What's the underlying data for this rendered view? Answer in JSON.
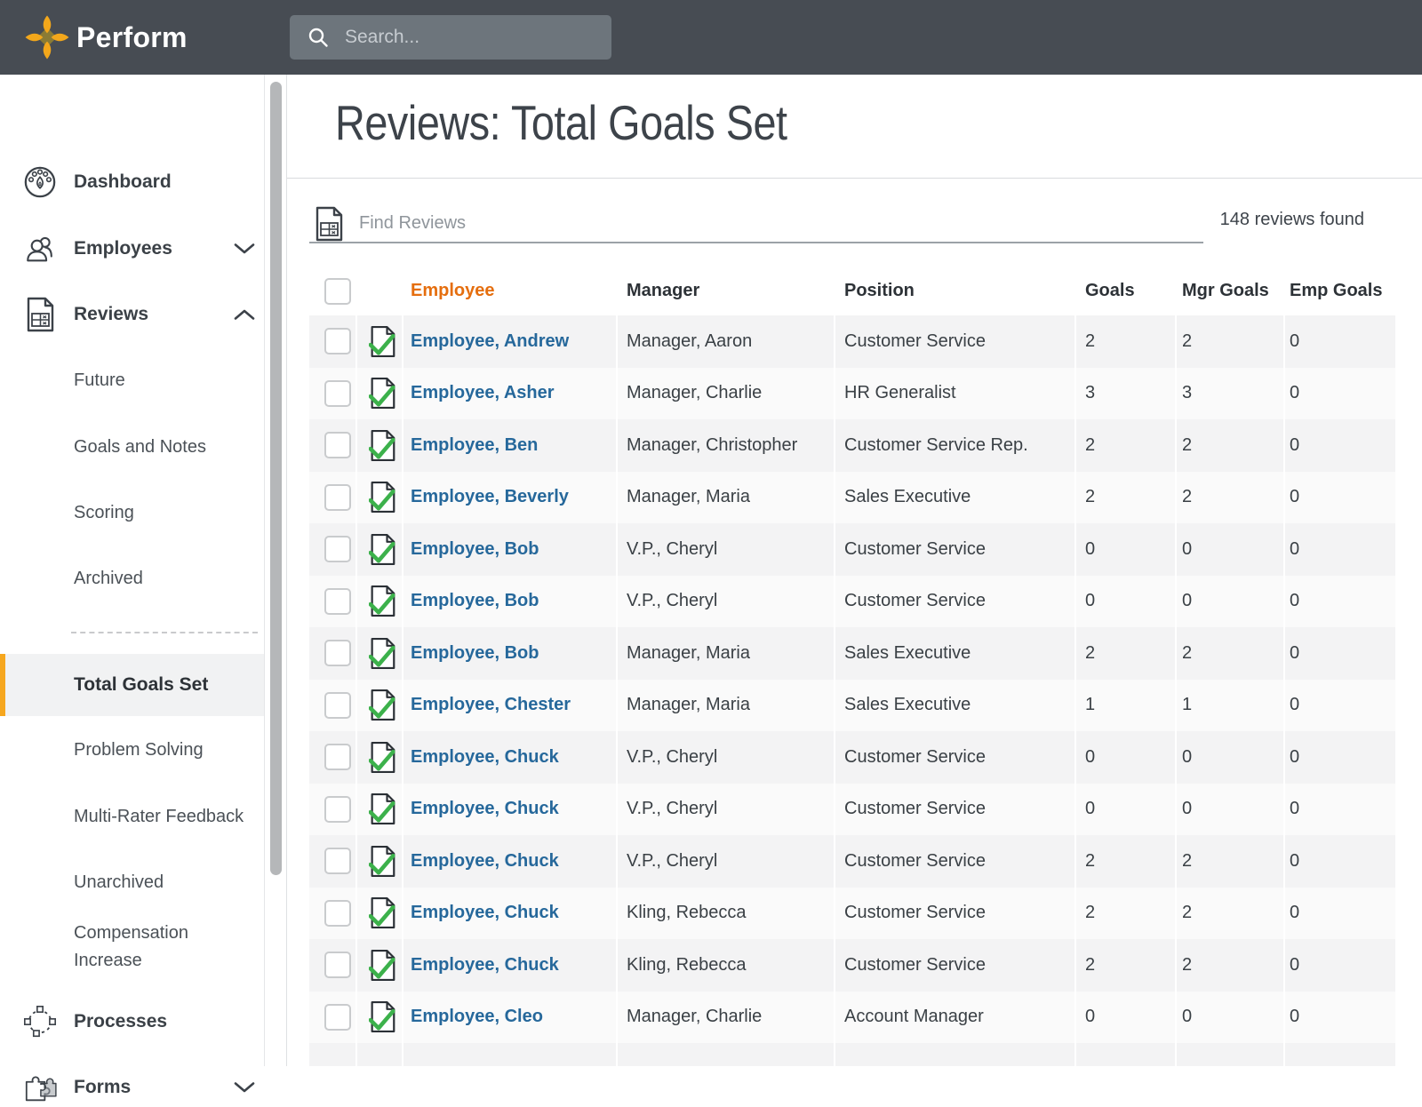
{
  "topbar": {
    "brand": "Perform",
    "search_placeholder": "Search..."
  },
  "sidebar": {
    "items": [
      {
        "type": "main",
        "icon": "dashboard-icon",
        "label": "Dashboard"
      },
      {
        "type": "main",
        "icon": "employees-icon",
        "label": "Employees",
        "chevron": "down"
      },
      {
        "type": "main",
        "icon": "reviews-icon",
        "label": "Reviews",
        "chevron": "up"
      },
      {
        "type": "sub",
        "label": "Future"
      },
      {
        "type": "sub",
        "label": "Goals and Notes"
      },
      {
        "type": "sub",
        "label": "Scoring"
      },
      {
        "type": "sub",
        "label": "Archived"
      },
      {
        "type": "divider"
      },
      {
        "type": "sub",
        "label": "Total Goals Set",
        "active": true
      },
      {
        "type": "sub",
        "label": "Problem Solving"
      },
      {
        "type": "sub",
        "label": "Multi-Rater Feedback"
      },
      {
        "type": "sub",
        "label": "Unarchived"
      },
      {
        "type": "sub",
        "label": "Compensation Increase",
        "twolines": true
      },
      {
        "type": "main",
        "icon": "processes-icon",
        "label": "Processes"
      },
      {
        "type": "main",
        "icon": "forms-icon",
        "label": "Forms",
        "chevron": "down"
      }
    ]
  },
  "main": {
    "title": "Reviews: Total Goals Set",
    "find": {
      "placeholder": "Find Reviews"
    },
    "results_count": "148 reviews found",
    "table": {
      "columns": [
        "Employee",
        "Manager",
        "Position",
        "Goals",
        "Mgr Goals",
        "Emp Goals"
      ],
      "rows": [
        {
          "employee": "Employee, Andrew",
          "manager": "Manager, Aaron",
          "position": "Customer Service",
          "goals": "2",
          "mgr_goals": "2",
          "emp_goals": "0"
        },
        {
          "employee": "Employee, Asher",
          "manager": "Manager, Charlie",
          "position": "HR Generalist",
          "goals": "3",
          "mgr_goals": "3",
          "emp_goals": "0"
        },
        {
          "employee": "Employee, Ben",
          "manager": "Manager, Christopher",
          "position": "Customer Service Rep.",
          "goals": "2",
          "mgr_goals": "2",
          "emp_goals": "0"
        },
        {
          "employee": "Employee, Beverly",
          "manager": "Manager, Maria",
          "position": "Sales Executive",
          "goals": "2",
          "mgr_goals": "2",
          "emp_goals": "0"
        },
        {
          "employee": "Employee, Bob",
          "manager": "V.P., Cheryl",
          "position": "Customer Service",
          "goals": "0",
          "mgr_goals": "0",
          "emp_goals": "0"
        },
        {
          "employee": "Employee, Bob",
          "manager": "V.P., Cheryl",
          "position": "Customer Service",
          "goals": "0",
          "mgr_goals": "0",
          "emp_goals": "0"
        },
        {
          "employee": "Employee, Bob",
          "manager": "Manager, Maria",
          "position": "Sales Executive",
          "goals": "2",
          "mgr_goals": "2",
          "emp_goals": "0"
        },
        {
          "employee": "Employee, Chester",
          "manager": "Manager, Maria",
          "position": "Sales Executive",
          "goals": "1",
          "mgr_goals": "1",
          "emp_goals": "0"
        },
        {
          "employee": "Employee, Chuck",
          "manager": "V.P., Cheryl",
          "position": "Customer Service",
          "goals": "0",
          "mgr_goals": "0",
          "emp_goals": "0"
        },
        {
          "employee": "Employee, Chuck",
          "manager": "V.P., Cheryl",
          "position": "Customer Service",
          "goals": "0",
          "mgr_goals": "0",
          "emp_goals": "0"
        },
        {
          "employee": "Employee, Chuck",
          "manager": "V.P., Cheryl",
          "position": "Customer Service",
          "goals": "2",
          "mgr_goals": "2",
          "emp_goals": "0"
        },
        {
          "employee": "Employee, Chuck",
          "manager": "Kling, Rebecca",
          "position": "Customer Service",
          "goals": "2",
          "mgr_goals": "2",
          "emp_goals": "0"
        },
        {
          "employee": "Employee, Chuck",
          "manager": "Kling, Rebecca",
          "position": "Customer Service",
          "goals": "2",
          "mgr_goals": "2",
          "emp_goals": "0"
        },
        {
          "employee": "Employee, Cleo",
          "manager": "Manager, Charlie",
          "position": "Account Manager",
          "goals": "0",
          "mgr_goals": "0",
          "emp_goals": "0"
        }
      ]
    }
  },
  "colors": {
    "topbar": "#474c53",
    "brand_gold": "#f3a71b",
    "accent_orange": "#e56e0e",
    "link_blue": "#26689b",
    "check_green": "#3cb14b",
    "active_item_bar": "#f6a71f"
  }
}
